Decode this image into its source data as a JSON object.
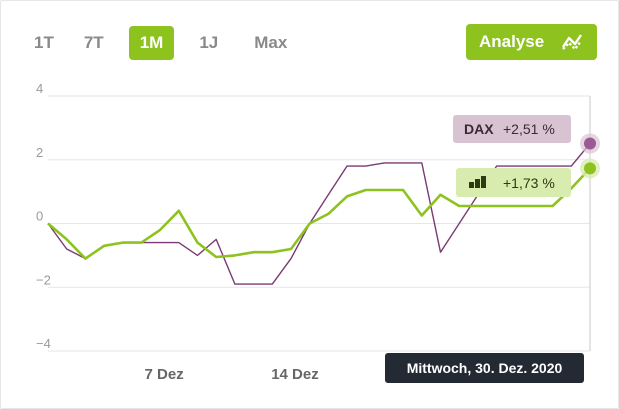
{
  "range_tabs": [
    {
      "label": "1T",
      "active": false
    },
    {
      "label": "7T",
      "active": false
    },
    {
      "label": "1M",
      "active": true
    },
    {
      "label": "1J",
      "active": false
    },
    {
      "label": "Max",
      "active": false
    }
  ],
  "analyse_button": {
    "label": "Analyse",
    "icon": "analyse-chart-icon"
  },
  "tooltip": {
    "date_text": "Mittwoch, 30. Dez. 2020"
  },
  "colors": {
    "accent": "#8dc21f",
    "dax": "#7a3a73",
    "dax_dot": "#9b5a93",
    "dax_label_bg": "#d8c3d2",
    "fund_label_bg": "#d9ecb0",
    "grid": "#e3e6ea",
    "axis_text": "#9a9a9a",
    "tooltip_bg": "#232a33"
  },
  "chart_data": {
    "type": "line",
    "x": [
      "1 Dez",
      "2 Dez",
      "3 Dez",
      "4 Dez",
      "5 Dez",
      "6 Dez",
      "7 Dez",
      "8 Dez",
      "9 Dez",
      "10 Dez",
      "11 Dez",
      "12 Dez",
      "13 Dez",
      "14 Dez",
      "15 Dez",
      "16 Dez",
      "17 Dez",
      "18 Dez",
      "19 Dez",
      "20 Dez",
      "21 Dez",
      "22 Dez",
      "23 Dez",
      "24 Dez",
      "25 Dez",
      "26 Dez",
      "27 Dez",
      "28 Dez",
      "29 Dez",
      "30 Dez"
    ],
    "x_tick_labels": [
      {
        "label": "7 Dez",
        "index": 6
      },
      {
        "label": "14 Dez",
        "index": 13
      }
    ],
    "ylim": [
      -4,
      4
    ],
    "yticks": [
      {
        "value": 4,
        "label": "4"
      },
      {
        "value": 2,
        "label": "2"
      },
      {
        "value": 0,
        "label": "0"
      },
      {
        "value": -2,
        "label": "−2"
      },
      {
        "value": -4,
        "label": "−4"
      }
    ],
    "grid": true,
    "legend": "right-end labels",
    "series": [
      {
        "name": "DAX",
        "values": [
          0.0,
          -0.8,
          -1.1,
          -0.7,
          -0.6,
          -0.6,
          -0.6,
          -0.6,
          -1.0,
          -0.5,
          -1.9,
          -1.9,
          -1.9,
          -1.1,
          0.0,
          0.9,
          1.8,
          1.8,
          1.9,
          1.9,
          1.9,
          -0.9,
          0.0,
          0.9,
          1.8,
          1.8,
          1.8,
          1.8,
          1.8,
          2.51
        ],
        "end_label": "+2,51 %"
      },
      {
        "name": "",
        "values": [
          0.0,
          -0.5,
          -1.1,
          -0.7,
          -0.6,
          -0.6,
          -0.2,
          0.4,
          -0.6,
          -1.05,
          -1.0,
          -0.9,
          -0.9,
          -0.8,
          0.0,
          0.3,
          0.85,
          1.05,
          1.05,
          1.05,
          0.25,
          0.9,
          0.55,
          0.55,
          0.55,
          0.55,
          0.55,
          0.55,
          1.1,
          1.73
        ],
        "end_label": "+1,73 %"
      }
    ]
  }
}
